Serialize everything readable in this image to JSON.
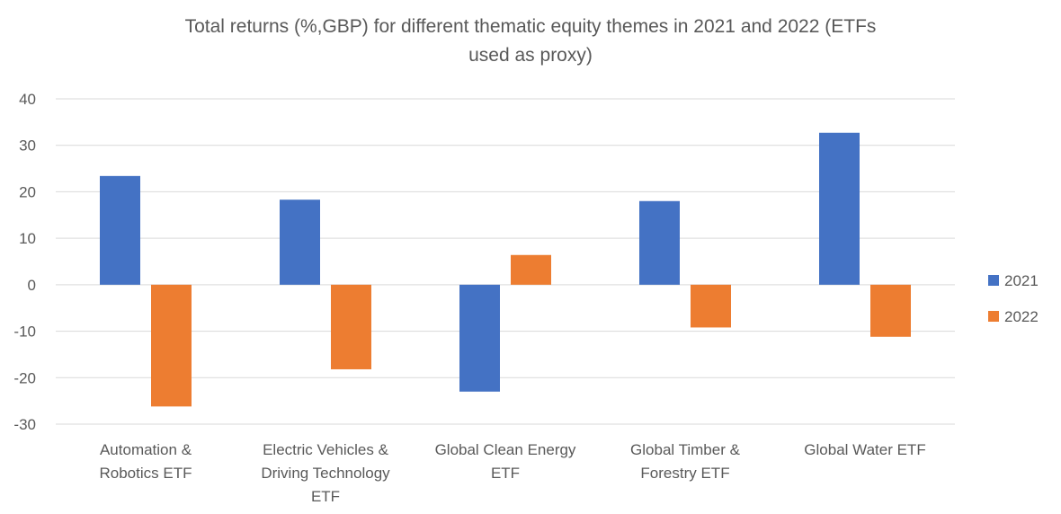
{
  "chart_data": {
    "type": "bar",
    "title_lines": [
      "Total returns (%,GBP) for different thematic equity themes in 2021 and 2022 (ETFs",
      "used as proxy)"
    ],
    "categories": [
      [
        "Automation &",
        "Robotics ETF"
      ],
      [
        "Electric Vehicles &",
        "Driving Technology",
        "ETF"
      ],
      [
        "Global Clean Energy",
        "ETF"
      ],
      [
        "Global Timber &",
        "Forestry ETF"
      ],
      [
        "Global Water ETF"
      ]
    ],
    "series": [
      {
        "name": "2021",
        "color": "#4472c4",
        "values": [
          23.4,
          18.3,
          -23.0,
          18.0,
          32.7
        ]
      },
      {
        "name": "2022",
        "color": "#ed7d31",
        "values": [
          -26.2,
          -18.2,
          6.4,
          -9.2,
          -11.2
        ]
      }
    ],
    "ylim": [
      -30,
      40
    ],
    "yticks": [
      "40",
      "30",
      "20",
      "10",
      "0",
      "-10",
      "-20",
      "-30"
    ],
    "grid": true,
    "legend_position": "right"
  }
}
